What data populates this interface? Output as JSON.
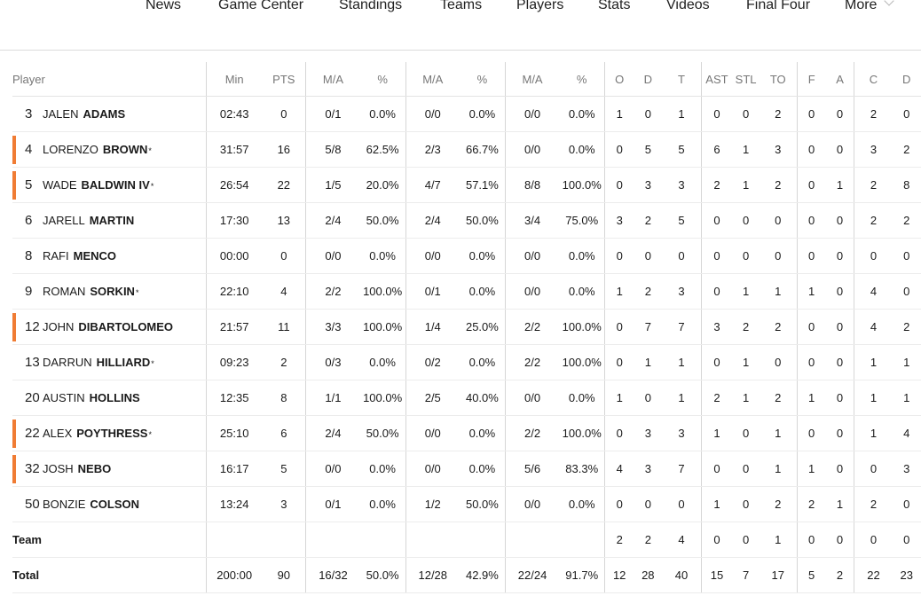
{
  "nav": {
    "items": [
      "News",
      "Game Center",
      "Standings",
      "Teams",
      "Players",
      "Stats",
      "Videos",
      "Final Four",
      "More"
    ]
  },
  "table": {
    "columns": [
      "Player",
      "Min",
      "PTS",
      "M/A",
      "%",
      "M/A",
      "%",
      "M/A",
      "%",
      "O",
      "D",
      "T",
      "AST",
      "STL",
      "TO",
      "F",
      "A",
      "C",
      "D"
    ],
    "rows": [
      {
        "number": "3",
        "first": "JALEN",
        "last": "ADAMS",
        "starter": false,
        "star": false,
        "stats": [
          "02:43",
          "0",
          "0/1",
          "0.0%",
          "0/0",
          "0.0%",
          "0/0",
          "0.0%",
          "1",
          "0",
          "1",
          "0",
          "0",
          "2",
          "0",
          "0",
          "2",
          "0"
        ]
      },
      {
        "number": "4",
        "first": "LORENZO",
        "last": "BROWN",
        "starter": true,
        "star": true,
        "stats": [
          "31:57",
          "16",
          "5/8",
          "62.5%",
          "2/3",
          "66.7%",
          "0/0",
          "0.0%",
          "0",
          "5",
          "5",
          "6",
          "1",
          "3",
          "0",
          "0",
          "3",
          "2"
        ]
      },
      {
        "number": "5",
        "first": "WADE",
        "last": "BALDWIN IV",
        "starter": true,
        "star": true,
        "stats": [
          "26:54",
          "22",
          "1/5",
          "20.0%",
          "4/7",
          "57.1%",
          "8/8",
          "100.0%",
          "0",
          "3",
          "3",
          "2",
          "1",
          "2",
          "0",
          "1",
          "2",
          "8"
        ]
      },
      {
        "number": "6",
        "first": "JARELL",
        "last": "MARTIN",
        "starter": false,
        "star": false,
        "stats": [
          "17:30",
          "13",
          "2/4",
          "50.0%",
          "2/4",
          "50.0%",
          "3/4",
          "75.0%",
          "3",
          "2",
          "5",
          "0",
          "0",
          "0",
          "0",
          "0",
          "2",
          "2"
        ]
      },
      {
        "number": "8",
        "first": "RAFI",
        "last": "MENCO",
        "starter": false,
        "star": false,
        "stats": [
          "00:00",
          "0",
          "0/0",
          "0.0%",
          "0/0",
          "0.0%",
          "0/0",
          "0.0%",
          "0",
          "0",
          "0",
          "0",
          "0",
          "0",
          "0",
          "0",
          "0",
          "0"
        ]
      },
      {
        "number": "9",
        "first": "ROMAN",
        "last": "SORKIN",
        "starter": false,
        "star": true,
        "stats": [
          "22:10",
          "4",
          "2/2",
          "100.0%",
          "0/1",
          "0.0%",
          "0/0",
          "0.0%",
          "1",
          "2",
          "3",
          "0",
          "1",
          "1",
          "1",
          "0",
          "4",
          "0"
        ]
      },
      {
        "number": "12",
        "first": "JOHN",
        "last": "DIBARTOLOMEO",
        "starter": true,
        "star": false,
        "stats": [
          "21:57",
          "11",
          "3/3",
          "100.0%",
          "1/4",
          "25.0%",
          "2/2",
          "100.0%",
          "0",
          "7",
          "7",
          "3",
          "2",
          "2",
          "0",
          "0",
          "4",
          "2"
        ]
      },
      {
        "number": "13",
        "first": "DARRUN",
        "last": "HILLIARD",
        "starter": false,
        "star": true,
        "stats": [
          "09:23",
          "2",
          "0/3",
          "0.0%",
          "0/2",
          "0.0%",
          "2/2",
          "100.0%",
          "0",
          "1",
          "1",
          "0",
          "1",
          "0",
          "0",
          "0",
          "1",
          "1"
        ]
      },
      {
        "number": "20",
        "first": "AUSTIN",
        "last": "HOLLINS",
        "starter": false,
        "star": false,
        "stats": [
          "12:35",
          "8",
          "1/1",
          "100.0%",
          "2/5",
          "40.0%",
          "0/0",
          "0.0%",
          "1",
          "0",
          "1",
          "2",
          "1",
          "2",
          "1",
          "0",
          "1",
          "1"
        ]
      },
      {
        "number": "22",
        "first": "ALEX",
        "last": "POYTHRESS",
        "starter": true,
        "star": true,
        "stats": [
          "25:10",
          "6",
          "2/4",
          "50.0%",
          "0/0",
          "0.0%",
          "2/2",
          "100.0%",
          "0",
          "3",
          "3",
          "1",
          "0",
          "1",
          "0",
          "0",
          "1",
          "4"
        ]
      },
      {
        "number": "32",
        "first": "JOSH",
        "last": "NEBO",
        "starter": true,
        "star": false,
        "stats": [
          "16:17",
          "5",
          "0/0",
          "0.0%",
          "0/0",
          "0.0%",
          "5/6",
          "83.3%",
          "4",
          "3",
          "7",
          "0",
          "0",
          "1",
          "1",
          "0",
          "0",
          "3"
        ]
      },
      {
        "number": "50",
        "first": "BONZIE",
        "last": "COLSON",
        "starter": false,
        "star": false,
        "stats": [
          "13:24",
          "3",
          "0/1",
          "0.0%",
          "1/2",
          "50.0%",
          "0/0",
          "0.0%",
          "0",
          "0",
          "0",
          "1",
          "0",
          "2",
          "2",
          "1",
          "2",
          "0"
        ]
      }
    ],
    "team": {
      "label": "Team",
      "stats": [
        "",
        "",
        "",
        "",
        "",
        "",
        "",
        "",
        "2",
        "2",
        "4",
        "0",
        "0",
        "1",
        "0",
        "0",
        "0",
        "0"
      ]
    },
    "total": {
      "label": "Total",
      "stats": [
        "200:00",
        "90",
        "16/32",
        "50.0%",
        "12/28",
        "42.9%",
        "22/24",
        "91.7%",
        "12",
        "28",
        "40",
        "15",
        "7",
        "17",
        "5",
        "2",
        "22",
        "23"
      ]
    },
    "accent_color": "#f07c34",
    "star_symbol": "*"
  }
}
